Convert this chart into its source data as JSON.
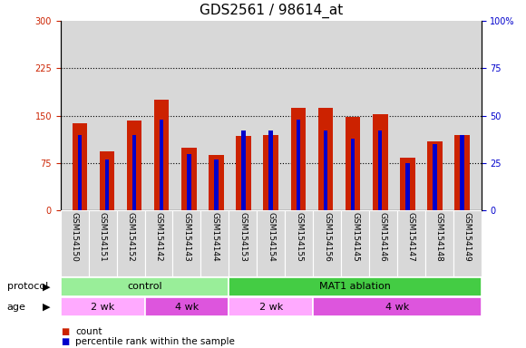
{
  "title": "GDS2561 / 98614_at",
  "samples": [
    "GSM154150",
    "GSM154151",
    "GSM154152",
    "GSM154142",
    "GSM154143",
    "GSM154144",
    "GSM154153",
    "GSM154154",
    "GSM154155",
    "GSM154156",
    "GSM154145",
    "GSM154146",
    "GSM154147",
    "GSM154148",
    "GSM154149"
  ],
  "red_values": [
    138,
    93,
    142,
    175,
    100,
    88,
    118,
    120,
    162,
    163,
    148,
    152,
    83,
    110,
    120
  ],
  "blue_values": [
    40,
    27,
    40,
    48,
    30,
    27,
    42,
    42,
    48,
    42,
    38,
    42,
    25,
    35,
    40
  ],
  "red_color": "#cc2200",
  "blue_color": "#0000cc",
  "ylim_left": [
    0,
    300
  ],
  "ylim_right": [
    0,
    100
  ],
  "yticks_left": [
    0,
    75,
    150,
    225,
    300
  ],
  "yticks_right": [
    0,
    25,
    50,
    75,
    100
  ],
  "ytick_labels_right": [
    "0",
    "25",
    "50",
    "75",
    "100%"
  ],
  "protocol_groups": [
    {
      "label": "control",
      "start": 0,
      "end": 6,
      "color": "#99ee99"
    },
    {
      "label": "MAT1 ablation",
      "start": 6,
      "end": 15,
      "color": "#44cc44"
    }
  ],
  "age_groups": [
    {
      "label": "2 wk",
      "start": 0,
      "end": 3,
      "color": "#ffaaff"
    },
    {
      "label": "4 wk",
      "start": 3,
      "end": 6,
      "color": "#dd55dd"
    },
    {
      "label": "2 wk",
      "start": 6,
      "end": 9,
      "color": "#ffaaff"
    },
    {
      "label": "4 wk",
      "start": 9,
      "end": 15,
      "color": "#dd55dd"
    }
  ],
  "protocol_label": "protocol",
  "age_label": "age",
  "legend_red": "count",
  "legend_blue": "percentile rank within the sample",
  "background_color": "#ffffff",
  "plot_bg_color": "#d8d8d8",
  "title_fontsize": 11,
  "tick_fontsize": 7,
  "label_fontsize": 8,
  "sample_fontsize": 6.5
}
